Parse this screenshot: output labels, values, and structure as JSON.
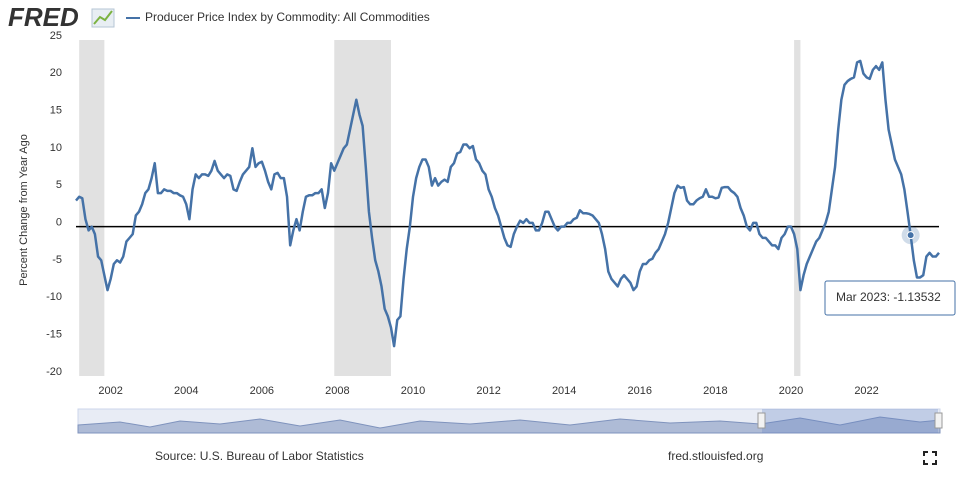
{
  "logo": "FRED",
  "chart_data": {
    "type": "line",
    "ylabel": "Percent Change from Year Ago",
    "source": "Source: U.S. Bureau of Labor Statistics",
    "site": "fred.stlouisfed.org",
    "tooltip": "Mar 2023: -1.13532",
    "xlim": [
      "2001-02",
      "2023-12"
    ],
    "xticks": [
      2002,
      2004,
      2006,
      2008,
      2010,
      2012,
      2014,
      2016,
      2018,
      2020,
      2022
    ],
    "ylim": [
      -20,
      25
    ],
    "yticks": [
      -20,
      -15,
      -10,
      -5,
      0,
      5,
      10,
      15,
      20,
      25
    ],
    "zero_line": true,
    "recessions": [
      [
        "2001-03",
        "2001-11"
      ],
      [
        "2007-12",
        "2009-06"
      ],
      [
        "2020-02",
        "2020-04"
      ]
    ],
    "x": [
      "2001-02",
      "2001-03",
      "2001-04",
      "2001-05",
      "2001-06",
      "2001-07",
      "2001-08",
      "2001-09",
      "2001-10",
      "2001-11",
      "2001-12",
      "2002-01",
      "2002-02",
      "2002-03",
      "2002-04",
      "2002-05",
      "2002-06",
      "2002-07",
      "2002-08",
      "2002-09",
      "2002-10",
      "2002-11",
      "2002-12",
      "2003-01",
      "2003-02",
      "2003-03",
      "2003-04",
      "2003-05",
      "2003-06",
      "2003-07",
      "2003-08",
      "2003-09",
      "2003-10",
      "2003-11",
      "2003-12",
      "2004-01",
      "2004-02",
      "2004-03",
      "2004-04",
      "2004-05",
      "2004-06",
      "2004-07",
      "2004-08",
      "2004-09",
      "2004-10",
      "2004-11",
      "2004-12",
      "2005-01",
      "2005-02",
      "2005-03",
      "2005-04",
      "2005-05",
      "2005-06",
      "2005-07",
      "2005-08",
      "2005-09",
      "2005-10",
      "2005-11",
      "2005-12",
      "2006-01",
      "2006-02",
      "2006-03",
      "2006-04",
      "2006-05",
      "2006-06",
      "2006-07",
      "2006-08",
      "2006-09",
      "2006-10",
      "2006-11",
      "2006-12",
      "2007-01",
      "2007-02",
      "2007-03",
      "2007-04",
      "2007-05",
      "2007-06",
      "2007-07",
      "2007-08",
      "2007-09",
      "2007-10",
      "2007-11",
      "2007-12",
      "2008-01",
      "2008-02",
      "2008-03",
      "2008-04",
      "2008-05",
      "2008-06",
      "2008-07",
      "2008-08",
      "2008-09",
      "2008-10",
      "2008-11",
      "2008-12",
      "2009-01",
      "2009-02",
      "2009-03",
      "2009-04",
      "2009-05",
      "2009-06",
      "2009-07",
      "2009-08",
      "2009-09",
      "2009-10",
      "2009-11",
      "2009-12",
      "2010-01",
      "2010-02",
      "2010-03",
      "2010-04",
      "2010-05",
      "2010-06",
      "2010-07",
      "2010-08",
      "2010-09",
      "2010-10",
      "2010-11",
      "2010-12",
      "2011-01",
      "2011-02",
      "2011-03",
      "2011-04",
      "2011-05",
      "2011-06",
      "2011-07",
      "2011-08",
      "2011-09",
      "2011-10",
      "2011-11",
      "2011-12",
      "2012-01",
      "2012-02",
      "2012-03",
      "2012-04",
      "2012-05",
      "2012-06",
      "2012-07",
      "2012-08",
      "2012-09",
      "2012-10",
      "2012-11",
      "2012-12",
      "2013-01",
      "2013-02",
      "2013-03",
      "2013-04",
      "2013-05",
      "2013-06",
      "2013-07",
      "2013-08",
      "2013-09",
      "2013-10",
      "2013-11",
      "2013-12",
      "2014-01",
      "2014-02",
      "2014-03",
      "2014-04",
      "2014-05",
      "2014-06",
      "2014-07",
      "2014-08",
      "2014-09",
      "2014-10",
      "2014-11",
      "2014-12",
      "2015-01",
      "2015-02",
      "2015-03",
      "2015-04",
      "2015-05",
      "2015-06",
      "2015-07",
      "2015-08",
      "2015-09",
      "2015-10",
      "2015-11",
      "2015-12",
      "2016-01",
      "2016-02",
      "2016-03",
      "2016-04",
      "2016-05",
      "2016-06",
      "2016-07",
      "2016-08",
      "2016-09",
      "2016-10",
      "2016-11",
      "2016-12",
      "2017-01",
      "2017-02",
      "2017-03",
      "2017-04",
      "2017-05",
      "2017-06",
      "2017-07",
      "2017-08",
      "2017-09",
      "2017-10",
      "2017-11",
      "2017-12",
      "2018-01",
      "2018-02",
      "2018-03",
      "2018-04",
      "2018-05",
      "2018-06",
      "2018-07",
      "2018-08",
      "2018-09",
      "2018-10",
      "2018-11",
      "2018-12",
      "2019-01",
      "2019-02",
      "2019-03",
      "2019-04",
      "2019-05",
      "2019-06",
      "2019-07",
      "2019-08",
      "2019-09",
      "2019-10",
      "2019-11",
      "2019-12",
      "2020-01",
      "2020-02",
      "2020-03",
      "2020-04",
      "2020-05",
      "2020-06",
      "2020-07",
      "2020-08",
      "2020-09",
      "2020-10",
      "2020-11",
      "2020-12",
      "2021-01",
      "2021-02",
      "2021-03",
      "2021-04",
      "2021-05",
      "2021-06",
      "2021-07",
      "2021-08",
      "2021-09",
      "2021-10",
      "2021-11",
      "2021-12",
      "2022-01",
      "2022-02",
      "2022-03",
      "2022-04",
      "2022-05",
      "2022-06",
      "2022-07",
      "2022-08",
      "2022-09",
      "2022-10",
      "2022-11",
      "2022-12",
      "2023-01",
      "2023-02",
      "2023-03",
      "2023-04",
      "2023-05",
      "2023-06",
      "2023-07",
      "2023-08",
      "2023-09",
      "2023-10",
      "2023-11",
      "2023-12"
    ],
    "series": [
      {
        "name": "Producer Price Index by Commodity: All Commodities",
        "color": "#4572a7",
        "values": [
          3.5,
          4,
          3.8,
          1,
          -0.5,
          0,
          -1,
          -4,
          -4.5,
          -6.5,
          -8.5,
          -7,
          -5,
          -4.5,
          -4.8,
          -4,
          -2,
          -1.5,
          -1,
          1.5,
          2,
          3,
          4.5,
          5,
          6.5,
          8.5,
          4.5,
          4.5,
          5,
          4.8,
          4.8,
          4.5,
          4.5,
          4.2,
          4,
          3,
          1,
          5,
          7,
          6.5,
          7,
          7,
          6.8,
          7.5,
          8.8,
          7.5,
          7,
          6.5,
          7,
          6.8,
          5,
          4.8,
          6,
          7,
          7.5,
          8,
          10.5,
          8,
          8.5,
          8.7,
          7.5,
          6,
          5,
          7,
          7.2,
          6.5,
          6.5,
          4,
          -2.5,
          -0.5,
          1,
          -0.5,
          2,
          4,
          4.2,
          4.2,
          4.5,
          4.5,
          5,
          2.5,
          4.5,
          8.5,
          7.5,
          8.5,
          9.5,
          10.5,
          11,
          13,
          15,
          17,
          15,
          13.5,
          8,
          2,
          -1.5,
          -4.5,
          -6,
          -8,
          -11,
          -12,
          -13.5,
          -16,
          -12.5,
          -12,
          -7,
          -3,
          0,
          4,
          6.5,
          8,
          9,
          9,
          8,
          5.5,
          6.5,
          5.5,
          6,
          6.3,
          6,
          8,
          8.5,
          9.8,
          10,
          11,
          11,
          10.5,
          10.8,
          9,
          8.5,
          7.5,
          7,
          5,
          4,
          2.5,
          1.5,
          0,
          -1.5,
          -2.5,
          -2.7,
          -1,
          0,
          0.8,
          0.5,
          1,
          0.5,
          0.5,
          -0.5,
          -0.5,
          0.5,
          2,
          2,
          1,
          0,
          -0.5,
          0,
          0,
          0.5,
          0.5,
          1,
          1.2,
          2.2,
          1.8,
          1.8,
          1.7,
          1.5,
          1,
          0.5,
          -1,
          -3,
          -6,
          -7,
          -7.5,
          -8,
          -7,
          -6.5,
          -7,
          -7.5,
          -8.5,
          -8,
          -6,
          -5,
          -5,
          -4.5,
          -4.3,
          -3.5,
          -3,
          -2,
          -1,
          0.5,
          2.5,
          4.5,
          5.5,
          5.2,
          5.3,
          3.5,
          3,
          3,
          3.5,
          3.8,
          4,
          5,
          4,
          4,
          3.8,
          3.9,
          5.2,
          5.3,
          5.3,
          4.8,
          4.5,
          4,
          2.5,
          1.5,
          0,
          -0.5,
          0.5,
          0.5,
          -1,
          -1.5,
          -1.5,
          -2,
          -2.5,
          -2.5,
          -3,
          -1.5,
          -1,
          0,
          0,
          -1,
          -3,
          -8.5,
          -6.5,
          -5,
          -4,
          -3,
          -2,
          -1.5,
          -0.5,
          0.5,
          2,
          5,
          8,
          13,
          17,
          19,
          19.5,
          19.8,
          20,
          22,
          22.2,
          20.5,
          20,
          19.8,
          21,
          21.5,
          21,
          22,
          17,
          13,
          11,
          9,
          8,
          7,
          5,
          2,
          -1.13532,
          -4.5,
          -6.8,
          -6.8,
          -6.5,
          -4,
          -3.5,
          -4,
          -4,
          -3.5
        ]
      }
    ]
  }
}
